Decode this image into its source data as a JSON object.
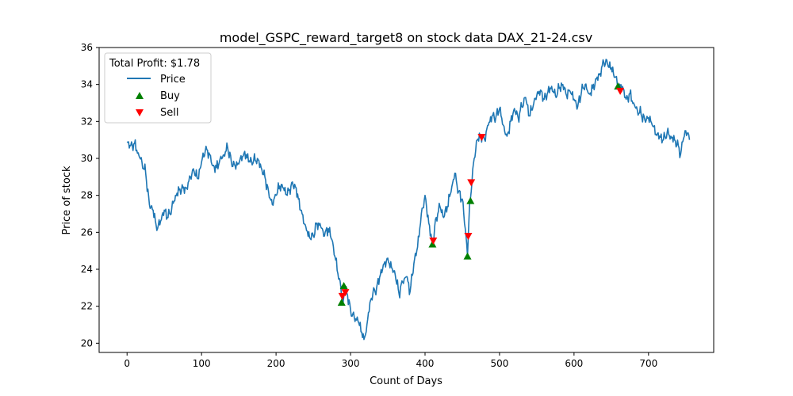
{
  "chart_data": {
    "type": "line",
    "title": "model_GSPC_reward_target8 on stock data DAX_21-24.csv",
    "xlabel": "Count of Days",
    "ylabel": "Price of stock",
    "xlim": [
      -37.5,
      787.5
    ],
    "ylim": [
      19.5,
      36
    ],
    "xticks": [
      0,
      100,
      200,
      300,
      400,
      500,
      600,
      700
    ],
    "yticks": [
      20,
      22,
      24,
      26,
      28,
      30,
      32,
      34,
      36
    ],
    "grid": false,
    "legend": {
      "location": "upper-left",
      "title": "Total Profit: $1.78",
      "entries": [
        {
          "label": "Price",
          "marker": "line",
          "color": "#1f77b4"
        },
        {
          "label": "Buy",
          "marker": "triangle-up",
          "color": "#008000"
        },
        {
          "label": "Sell",
          "marker": "triangle-down",
          "color": "#ff0000"
        }
      ]
    },
    "series": [
      {
        "name": "Price",
        "color": "#1f77b4",
        "keypoints": [
          [
            0,
            30.9
          ],
          [
            5,
            30.7
          ],
          [
            10,
            30.8
          ],
          [
            15,
            30.3
          ],
          [
            20,
            29.8
          ],
          [
            25,
            29.2
          ],
          [
            30,
            27.5
          ],
          [
            35,
            27.2
          ],
          [
            40,
            26.1
          ],
          [
            45,
            26.6
          ],
          [
            50,
            27.2
          ],
          [
            55,
            26.8
          ],
          [
            60,
            27.3
          ],
          [
            65,
            28.0
          ],
          [
            70,
            28.3
          ],
          [
            75,
            28.4
          ],
          [
            80,
            28.4
          ],
          [
            85,
            29.0
          ],
          [
            90,
            29.3
          ],
          [
            95,
            28.9
          ],
          [
            100,
            29.8
          ],
          [
            105,
            30.4
          ],
          [
            110,
            30.3
          ],
          [
            115,
            29.6
          ],
          [
            120,
            29.5
          ],
          [
            125,
            30.0
          ],
          [
            130,
            30.2
          ],
          [
            135,
            30.6
          ],
          [
            140,
            29.8
          ],
          [
            145,
            29.6
          ],
          [
            150,
            29.7
          ],
          [
            155,
            30.1
          ],
          [
            160,
            30.2
          ],
          [
            165,
            29.8
          ],
          [
            170,
            29.9
          ],
          [
            175,
            30.0
          ],
          [
            180,
            29.5
          ],
          [
            185,
            29.0
          ],
          [
            190,
            28.2
          ],
          [
            195,
            27.5
          ],
          [
            200,
            28.0
          ],
          [
            205,
            28.5
          ],
          [
            210,
            28.4
          ],
          [
            215,
            28.0
          ],
          [
            220,
            28.5
          ],
          [
            225,
            28.6
          ],
          [
            230,
            27.8
          ],
          [
            235,
            27.0
          ],
          [
            240,
            26.3
          ],
          [
            245,
            25.7
          ],
          [
            250,
            25.8
          ],
          [
            255,
            26.5
          ],
          [
            260,
            26.3
          ],
          [
            265,
            25.8
          ],
          [
            270,
            26.2
          ],
          [
            275,
            25.6
          ],
          [
            280,
            24.5
          ],
          [
            285,
            23.5
          ],
          [
            290,
            22.2
          ],
          [
            293,
            23.0
          ],
          [
            296,
            22.6
          ],
          [
            300,
            21.8
          ],
          [
            305,
            21.4
          ],
          [
            310,
            21.2
          ],
          [
            315,
            20.6
          ],
          [
            318,
            20.2
          ],
          [
            322,
            21.0
          ],
          [
            326,
            22.2
          ],
          [
            330,
            22.7
          ],
          [
            335,
            23.0
          ],
          [
            340,
            23.7
          ],
          [
            345,
            24.3
          ],
          [
            350,
            24.6
          ],
          [
            355,
            24.1
          ],
          [
            360,
            23.7
          ],
          [
            365,
            22.7
          ],
          [
            370,
            23.3
          ],
          [
            375,
            23.6
          ],
          [
            380,
            22.8
          ],
          [
            385,
            24.3
          ],
          [
            390,
            25.2
          ],
          [
            395,
            27.0
          ],
          [
            400,
            28.0
          ],
          [
            405,
            26.5
          ],
          [
            410,
            25.3
          ],
          [
            415,
            26.8
          ],
          [
            420,
            27.4
          ],
          [
            425,
            26.8
          ],
          [
            430,
            27.4
          ],
          [
            435,
            28.2
          ],
          [
            440,
            29.2
          ],
          [
            445,
            28.2
          ],
          [
            450,
            27.8
          ],
          [
            455,
            25.8
          ],
          [
            457,
            24.7
          ],
          [
            460,
            27.7
          ],
          [
            463,
            28.7
          ],
          [
            466,
            30.0
          ],
          [
            470,
            31.0
          ],
          [
            475,
            31.2
          ],
          [
            480,
            31.0
          ],
          [
            485,
            31.8
          ],
          [
            490,
            32.3
          ],
          [
            495,
            32.2
          ],
          [
            500,
            32.7
          ],
          [
            505,
            31.8
          ],
          [
            510,
            31.2
          ],
          [
            515,
            32.0
          ],
          [
            520,
            32.7
          ],
          [
            525,
            32.2
          ],
          [
            530,
            32.8
          ],
          [
            535,
            33.3
          ],
          [
            540,
            32.3
          ],
          [
            545,
            32.8
          ],
          [
            550,
            33.4
          ],
          [
            555,
            33.7
          ],
          [
            560,
            33.2
          ],
          [
            565,
            33.6
          ],
          [
            570,
            33.9
          ],
          [
            575,
            33.4
          ],
          [
            580,
            33.8
          ],
          [
            585,
            34.0
          ],
          [
            590,
            33.4
          ],
          [
            595,
            33.6
          ],
          [
            600,
            33.2
          ],
          [
            605,
            32.8
          ],
          [
            610,
            33.6
          ],
          [
            615,
            34.0
          ],
          [
            620,
            33.5
          ],
          [
            625,
            33.8
          ],
          [
            630,
            34.3
          ],
          [
            635,
            34.6
          ],
          [
            640,
            35.2
          ],
          [
            645,
            35.1
          ],
          [
            650,
            34.9
          ],
          [
            655,
            34.4
          ],
          [
            660,
            33.8
          ],
          [
            665,
            33.9
          ],
          [
            670,
            33.2
          ],
          [
            675,
            33.5
          ],
          [
            680,
            33.0
          ],
          [
            685,
            32.6
          ],
          [
            690,
            32.4
          ],
          [
            695,
            32.1
          ],
          [
            700,
            32.2
          ],
          [
            705,
            31.8
          ],
          [
            710,
            31.3
          ],
          [
            715,
            31.2
          ],
          [
            720,
            31.0
          ],
          [
            725,
            31.4
          ],
          [
            730,
            31.2
          ],
          [
            735,
            31.0
          ],
          [
            740,
            30.7
          ],
          [
            743,
            30.2
          ],
          [
            746,
            30.9
          ],
          [
            750,
            31.5
          ],
          [
            755,
            31.0
          ]
        ]
      }
    ],
    "buy_points": [
      [
        288,
        22.2
      ],
      [
        291,
        23.1
      ],
      [
        410,
        25.35
      ],
      [
        457,
        24.7
      ],
      [
        461,
        27.7
      ],
      [
        659,
        33.9
      ]
    ],
    "sell_points": [
      [
        289,
        22.55
      ],
      [
        293,
        22.75
      ],
      [
        411,
        25.55
      ],
      [
        458,
        25.8
      ],
      [
        462,
        28.7
      ],
      [
        476,
        31.15
      ],
      [
        662,
        33.65
      ]
    ]
  }
}
